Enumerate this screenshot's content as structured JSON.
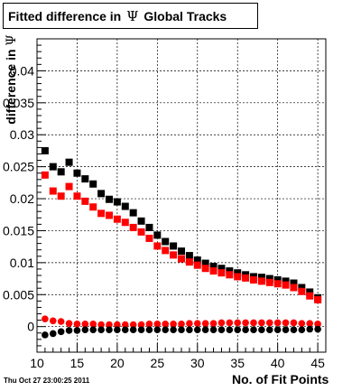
{
  "chart_data": {
    "type": "scatter",
    "title_prefix": "Fitted difference in",
    "title_symbol": "Ψ",
    "title_suffix": "Global Tracks",
    "xlabel": "No. of Fit Points",
    "ylabel_prefix": "difference in",
    "ylabel_symbol": "Ψ",
    "xlim": [
      10,
      46
    ],
    "ylim": [
      -0.004,
      0.045
    ],
    "xticks": [
      10,
      15,
      20,
      25,
      30,
      35,
      40,
      45
    ],
    "yticks": [
      0,
      0.005,
      0.01,
      0.015,
      0.02,
      0.025,
      0.03,
      0.035,
      0.04
    ],
    "ytick_labels": [
      "0",
      "0.005",
      "0.01",
      "0.015",
      "0.02",
      "0.025",
      "0.03",
      "0.035",
      "0.04"
    ],
    "grid": true,
    "series": [
      {
        "marker": "square",
        "color": "#000000",
        "x": [
          11,
          12,
          13,
          14,
          15,
          16,
          17,
          18,
          19,
          20,
          21,
          22,
          23,
          24,
          25,
          26,
          27,
          28,
          29,
          30,
          31,
          32,
          33,
          34,
          35,
          36,
          37,
          38,
          39,
          40,
          41,
          42,
          43,
          44,
          45
        ],
        "y": [
          0.0275,
          0.025,
          0.0242,
          0.0257,
          0.024,
          0.0231,
          0.0223,
          0.0208,
          0.0199,
          0.0195,
          0.0188,
          0.0178,
          0.0165,
          0.0155,
          0.0143,
          0.0133,
          0.0126,
          0.0118,
          0.0111,
          0.0104,
          0.0099,
          0.0094,
          0.0091,
          0.0087,
          0.0084,
          0.0081,
          0.0078,
          0.0077,
          0.0075,
          0.0073,
          0.0071,
          0.0068,
          0.0061,
          0.0054,
          0.0045
        ]
      },
      {
        "marker": "square",
        "color": "#ff0000",
        "x": [
          11,
          12,
          13,
          14,
          15,
          16,
          17,
          18,
          19,
          20,
          21,
          22,
          23,
          24,
          25,
          26,
          27,
          28,
          29,
          30,
          31,
          32,
          33,
          34,
          35,
          36,
          37,
          38,
          39,
          40,
          41,
          42,
          43,
          44,
          45
        ],
        "y": [
          0.0237,
          0.0212,
          0.0204,
          0.0219,
          0.0204,
          0.0196,
          0.0187,
          0.0177,
          0.0174,
          0.0168,
          0.0163,
          0.0155,
          0.0148,
          0.0138,
          0.0126,
          0.0119,
          0.0112,
          0.0106,
          0.0101,
          0.0096,
          0.0091,
          0.0087,
          0.0084,
          0.0081,
          0.0078,
          0.0076,
          0.0073,
          0.0071,
          0.0069,
          0.0067,
          0.0065,
          0.0061,
          0.0055,
          0.0048,
          0.0042
        ]
      },
      {
        "marker": "circle",
        "color": "#ff0000",
        "x": [
          11,
          12,
          13,
          14,
          15,
          16,
          17,
          18,
          19,
          20,
          21,
          22,
          23,
          24,
          25,
          26,
          27,
          28,
          29,
          30,
          31,
          32,
          33,
          34,
          35,
          36,
          37,
          38,
          39,
          40,
          41,
          42,
          43,
          44,
          45
        ],
        "y": [
          0.0012,
          0.0009,
          0.0008,
          0.0005,
          0.0004,
          0.0004,
          0.0004,
          0.0003,
          0.0003,
          0.0003,
          0.0003,
          0.0003,
          0.0003,
          0.0004,
          0.0004,
          0.0004,
          0.0004,
          0.0004,
          0.0005,
          0.0005,
          0.0005,
          0.0005,
          0.0006,
          0.0006,
          0.0006,
          0.0006,
          0.0006,
          0.0006,
          0.0006,
          0.0006,
          0.0006,
          0.0006,
          0.0005,
          0.0005,
          0.0004
        ]
      },
      {
        "marker": "circle",
        "color": "#000000",
        "x": [
          11,
          12,
          13,
          14,
          15,
          16,
          17,
          18,
          19,
          20,
          21,
          22,
          23,
          24,
          25,
          26,
          27,
          28,
          29,
          30,
          31,
          32,
          33,
          34,
          35,
          36,
          37,
          38,
          39,
          40,
          41,
          42,
          43,
          44,
          45
        ],
        "y": [
          -0.0013,
          -0.0011,
          -0.0008,
          -0.0006,
          -0.0006,
          -0.0005,
          -0.0005,
          -0.0005,
          -0.0005,
          -0.0005,
          -0.0005,
          -0.0005,
          -0.0005,
          -0.0005,
          -0.0005,
          -0.0005,
          -0.0005,
          -0.0005,
          -0.0005,
          -0.0005,
          -0.0005,
          -0.0005,
          -0.0005,
          -0.0005,
          -0.0005,
          -0.0005,
          -0.0005,
          -0.0005,
          -0.0005,
          -0.0005,
          -0.0005,
          -0.0005,
          -0.0005,
          -0.0004,
          -0.0004
        ]
      }
    ]
  },
  "footer": {
    "timestamp": "Thu Oct 27 23:00:25 2011"
  }
}
